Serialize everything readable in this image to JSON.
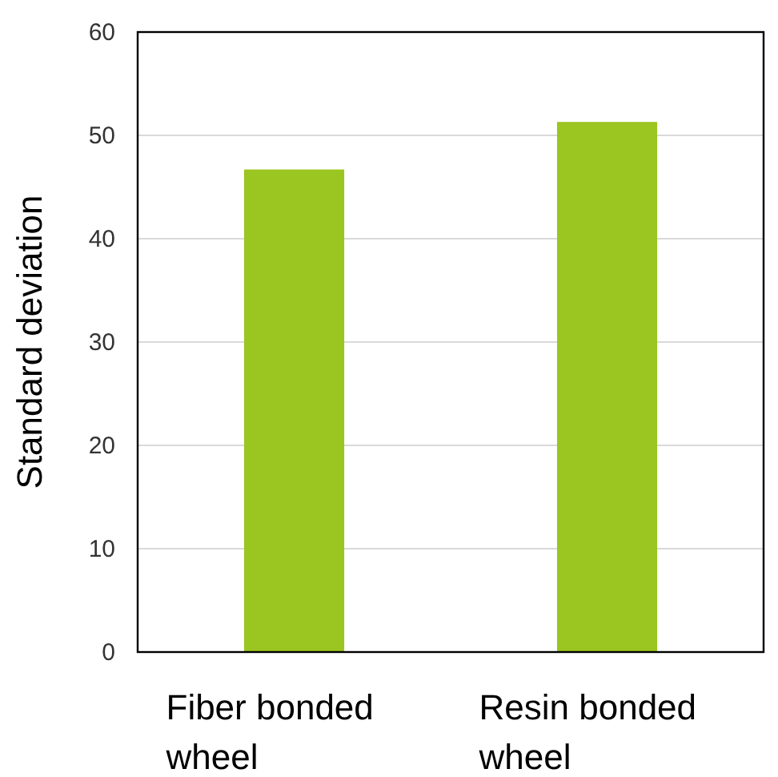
{
  "chart_data": {
    "type": "bar",
    "ylabel": "Standard deviation",
    "categories": [
      "Fiber bonded wheel",
      "Resin bonded wheel"
    ],
    "values": [
      46.7,
      51.3
    ],
    "color": "#9bc520",
    "ylim": [
      0,
      60
    ],
    "yticks": [
      0,
      10,
      20,
      30,
      40,
      50,
      60
    ],
    "grid": "y"
  }
}
